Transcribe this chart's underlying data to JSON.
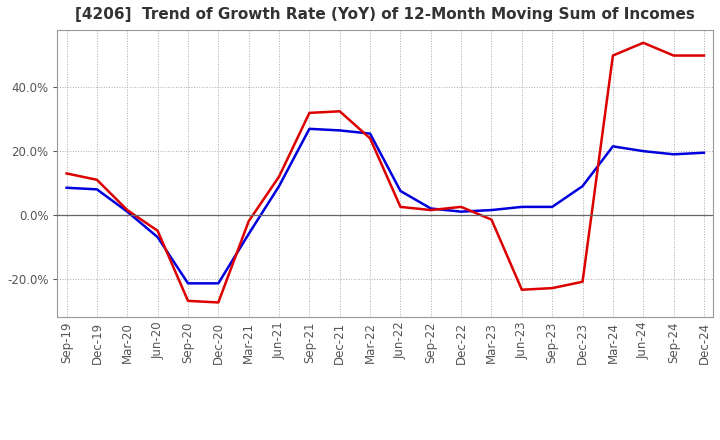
{
  "title": "[4206]  Trend of Growth Rate (YoY) of 12-Month Moving Sum of Incomes",
  "title_fontsize": 11,
  "ylim": [
    -32,
    58
  ],
  "yticks": [
    -20.0,
    0.0,
    20.0,
    40.0
  ],
  "background_color": "#ffffff",
  "grid_color": "#aaaaaa",
  "line1_color": "#0000dd",
  "line2_color": "#dd0000",
  "x_labels": [
    "Sep-19",
    "Dec-19",
    "Mar-20",
    "Jun-20",
    "Sep-20",
    "Dec-20",
    "Mar-21",
    "Jun-21",
    "Sep-21",
    "Dec-21",
    "Mar-22",
    "Jun-22",
    "Sep-22",
    "Dec-22",
    "Mar-23",
    "Jun-23",
    "Sep-23",
    "Dec-23",
    "Mar-24",
    "Jun-24",
    "Sep-24",
    "Dec-24"
  ],
  "ordinary_income_growth": [
    8.5,
    8.0,
    1.0,
    -7.0,
    -21.5,
    -21.5,
    -6.0,
    9.0,
    27.0,
    26.5,
    25.5,
    7.5,
    2.0,
    1.0,
    1.5,
    2.5,
    2.5,
    9.0,
    21.5,
    20.0,
    19.0,
    19.5
  ],
  "net_income_growth": [
    13.0,
    11.0,
    1.5,
    -5.0,
    -27.0,
    -27.5,
    -2.0,
    12.0,
    32.0,
    32.5,
    24.0,
    2.5,
    1.5,
    2.5,
    -1.5,
    -23.5,
    -23.0,
    -21.0,
    50.0,
    54.0,
    50.0,
    50.0
  ]
}
